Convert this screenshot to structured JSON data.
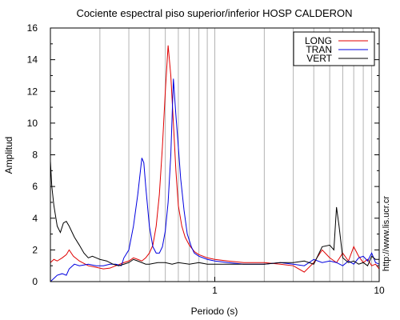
{
  "chart_data": {
    "type": "line",
    "title": "Cociente espectral piso superior/inferior  HOSP CALDERON",
    "xlabel": "Periodo (s)",
    "ylabel": "Amplitud",
    "xscale": "log",
    "xlim": [
      0.1,
      10
    ],
    "ylim": [
      0,
      16
    ],
    "grid": "vertical",
    "legend_position": "top-right",
    "x_tick_labels": [
      {
        "value": 1,
        "label": "1"
      },
      {
        "value": 10,
        "label": "10"
      }
    ],
    "y_tick_labels": [
      "0",
      "2",
      "4",
      "6",
      "8",
      "10",
      "12",
      "14",
      "16"
    ],
    "credit": "http://www.lis.ucr.cr",
    "series": [
      {
        "name": "LONG",
        "color": "#e00000",
        "points": [
          [
            0.1,
            1.2
          ],
          [
            0.105,
            1.4
          ],
          [
            0.11,
            1.3
          ],
          [
            0.118,
            1.5
          ],
          [
            0.125,
            1.7
          ],
          [
            0.13,
            2.0
          ],
          [
            0.138,
            1.6
          ],
          [
            0.15,
            1.3
          ],
          [
            0.17,
            1.0
          ],
          [
            0.19,
            0.9
          ],
          [
            0.21,
            0.8
          ],
          [
            0.23,
            0.85
          ],
          [
            0.25,
            1.0
          ],
          [
            0.28,
            1.2
          ],
          [
            0.3,
            1.3
          ],
          [
            0.32,
            1.5
          ],
          [
            0.34,
            1.4
          ],
          [
            0.36,
            1.3
          ],
          [
            0.38,
            1.5
          ],
          [
            0.4,
            1.8
          ],
          [
            0.42,
            2.3
          ],
          [
            0.44,
            3.5
          ],
          [
            0.46,
            5.5
          ],
          [
            0.48,
            8.5
          ],
          [
            0.5,
            12.0
          ],
          [
            0.52,
            14.9
          ],
          [
            0.54,
            13.0
          ],
          [
            0.56,
            10.0
          ],
          [
            0.58,
            7.0
          ],
          [
            0.6,
            4.8
          ],
          [
            0.63,
            3.5
          ],
          [
            0.66,
            2.8
          ],
          [
            0.7,
            2.3
          ],
          [
            0.75,
            1.9
          ],
          [
            0.8,
            1.7
          ],
          [
            0.85,
            1.6
          ],
          [
            0.9,
            1.5
          ],
          [
            1.0,
            1.4
          ],
          [
            1.2,
            1.3
          ],
          [
            1.5,
            1.2
          ],
          [
            2.0,
            1.2
          ],
          [
            2.5,
            1.1
          ],
          [
            3.0,
            1.0
          ],
          [
            3.5,
            0.6
          ],
          [
            4.0,
            1.2
          ],
          [
            4.5,
            2.0
          ],
          [
            5.0,
            1.5
          ],
          [
            5.5,
            1.2
          ],
          [
            6.0,
            1.8
          ],
          [
            6.5,
            1.3
          ],
          [
            7.0,
            2.2
          ],
          [
            7.5,
            1.6
          ],
          [
            8.0,
            1.2
          ],
          [
            8.5,
            1.4
          ],
          [
            9.0,
            1.0
          ],
          [
            9.5,
            1.1
          ],
          [
            10.0,
            0.8
          ]
        ]
      },
      {
        "name": "TRAN",
        "color": "#0000e0",
        "points": [
          [
            0.1,
            0.0
          ],
          [
            0.105,
            0.2
          ],
          [
            0.11,
            0.4
          ],
          [
            0.118,
            0.5
          ],
          [
            0.125,
            0.4
          ],
          [
            0.13,
            0.8
          ],
          [
            0.14,
            1.1
          ],
          [
            0.15,
            1.0
          ],
          [
            0.17,
            1.1
          ],
          [
            0.19,
            1.0
          ],
          [
            0.21,
            1.0
          ],
          [
            0.23,
            1.1
          ],
          [
            0.25,
            1.1
          ],
          [
            0.27,
            1.0
          ],
          [
            0.28,
            1.5
          ],
          [
            0.3,
            2.0
          ],
          [
            0.32,
            3.5
          ],
          [
            0.34,
            5.5
          ],
          [
            0.36,
            7.8
          ],
          [
            0.37,
            7.5
          ],
          [
            0.38,
            6.0
          ],
          [
            0.4,
            3.5
          ],
          [
            0.42,
            2.2
          ],
          [
            0.44,
            1.8
          ],
          [
            0.46,
            1.8
          ],
          [
            0.48,
            2.2
          ],
          [
            0.5,
            3.2
          ],
          [
            0.52,
            5.0
          ],
          [
            0.54,
            8.0
          ],
          [
            0.56,
            12.8
          ],
          [
            0.58,
            10.5
          ],
          [
            0.6,
            8.5
          ],
          [
            0.62,
            6.5
          ],
          [
            0.65,
            4.5
          ],
          [
            0.68,
            3.0
          ],
          [
            0.72,
            2.2
          ],
          [
            0.75,
            1.8
          ],
          [
            0.8,
            1.6
          ],
          [
            0.9,
            1.4
          ],
          [
            1.0,
            1.3
          ],
          [
            1.2,
            1.2
          ],
          [
            1.5,
            1.1
          ],
          [
            2.0,
            1.1
          ],
          [
            2.5,
            1.2
          ],
          [
            3.0,
            1.1
          ],
          [
            3.5,
            1.0
          ],
          [
            4.0,
            1.4
          ],
          [
            4.5,
            1.2
          ],
          [
            5.0,
            1.3
          ],
          [
            5.5,
            1.2
          ],
          [
            6.0,
            1.0
          ],
          [
            6.5,
            1.3
          ],
          [
            7.0,
            1.1
          ],
          [
            7.5,
            1.5
          ],
          [
            8.0,
            1.6
          ],
          [
            8.5,
            1.3
          ],
          [
            9.0,
            1.8
          ],
          [
            9.5,
            1.2
          ],
          [
            10.0,
            1.1
          ]
        ]
      },
      {
        "name": "VERT",
        "color": "#000000",
        "points": [
          [
            0.1,
            7.6
          ],
          [
            0.102,
            6.0
          ],
          [
            0.105,
            4.8
          ],
          [
            0.11,
            3.5
          ],
          [
            0.115,
            3.1
          ],
          [
            0.12,
            3.7
          ],
          [
            0.125,
            3.8
          ],
          [
            0.13,
            3.5
          ],
          [
            0.14,
            2.8
          ],
          [
            0.15,
            2.3
          ],
          [
            0.16,
            1.8
          ],
          [
            0.17,
            1.5
          ],
          [
            0.18,
            1.6
          ],
          [
            0.19,
            1.5
          ],
          [
            0.2,
            1.4
          ],
          [
            0.22,
            1.3
          ],
          [
            0.24,
            1.1
          ],
          [
            0.26,
            1.0
          ],
          [
            0.28,
            1.1
          ],
          [
            0.3,
            1.2
          ],
          [
            0.32,
            1.4
          ],
          [
            0.34,
            1.3
          ],
          [
            0.36,
            1.2
          ],
          [
            0.38,
            1.1
          ],
          [
            0.4,
            1.1
          ],
          [
            0.45,
            1.2
          ],
          [
            0.5,
            1.2
          ],
          [
            0.55,
            1.1
          ],
          [
            0.6,
            1.2
          ],
          [
            0.7,
            1.1
          ],
          [
            0.8,
            1.2
          ],
          [
            0.9,
            1.1
          ],
          [
            1.0,
            1.1
          ],
          [
            1.2,
            1.1
          ],
          [
            1.5,
            1.1
          ],
          [
            2.0,
            1.1
          ],
          [
            2.5,
            1.2
          ],
          [
            3.0,
            1.2
          ],
          [
            3.5,
            1.3
          ],
          [
            4.0,
            1.1
          ],
          [
            4.5,
            2.2
          ],
          [
            5.0,
            2.3
          ],
          [
            5.3,
            2.0
          ],
          [
            5.5,
            4.7
          ],
          [
            5.7,
            3.5
          ],
          [
            6.0,
            1.5
          ],
          [
            6.5,
            1.2
          ],
          [
            7.0,
            1.3
          ],
          [
            7.5,
            1.1
          ],
          [
            8.0,
            1.2
          ],
          [
            8.5,
            1.0
          ],
          [
            9.0,
            1.6
          ],
          [
            9.5,
            1.4
          ],
          [
            10.0,
            1.4
          ]
        ]
      }
    ]
  }
}
